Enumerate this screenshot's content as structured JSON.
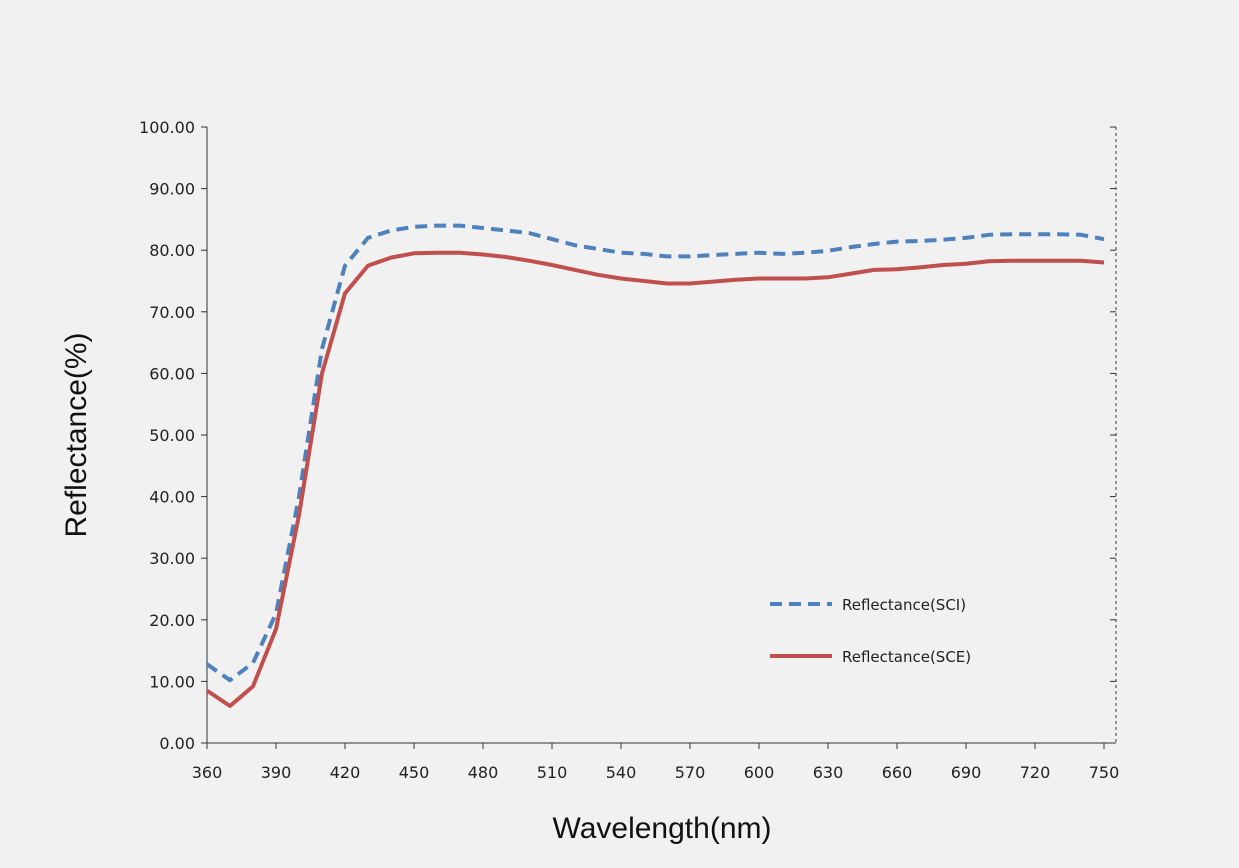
{
  "chart_data": {
    "type": "line",
    "xlabel": "Wavelength(nm)",
    "ylabel": "Reflectance(%)",
    "xlim": [
      360,
      750
    ],
    "ylim": [
      0,
      100
    ],
    "x_ticks": [
      "360",
      "390",
      "420",
      "450",
      "480",
      "510",
      "540",
      "570",
      "600",
      "630",
      "660",
      "690",
      "720",
      "750"
    ],
    "y_ticks": [
      "0.00",
      "10.00",
      "20.00",
      "30.00",
      "40.00",
      "50.00",
      "60.00",
      "70.00",
      "80.00",
      "90.00",
      "100.00"
    ],
    "legend_position": "bottom-right",
    "grid": false,
    "x": [
      360,
      370,
      380,
      390,
      400,
      410,
      420,
      430,
      440,
      450,
      460,
      470,
      480,
      490,
      500,
      510,
      520,
      530,
      540,
      550,
      560,
      570,
      580,
      590,
      600,
      610,
      620,
      630,
      640,
      650,
      660,
      670,
      680,
      690,
      700,
      710,
      720,
      730,
      740,
      750
    ],
    "series": [
      {
        "name": "Reflectance(SCI)",
        "color": "#4f81bd",
        "dash": "dashed",
        "values": [
          12.8,
          10.2,
          13.0,
          21.0,
          40.0,
          64.0,
          77.5,
          82.0,
          83.2,
          83.8,
          84.0,
          84.0,
          83.6,
          83.2,
          82.8,
          81.8,
          80.8,
          80.2,
          79.6,
          79.4,
          79.0,
          79.0,
          79.2,
          79.4,
          79.6,
          79.4,
          79.6,
          79.9,
          80.5,
          81.0,
          81.4,
          81.5,
          81.7,
          82.0,
          82.5,
          82.6,
          82.6,
          82.6,
          82.5,
          81.8
        ]
      },
      {
        "name": "Reflectance(SCE)",
        "color": "#c0504d",
        "dash": "solid",
        "values": [
          8.5,
          6.0,
          9.2,
          18.5,
          37.0,
          60.0,
          73.0,
          77.5,
          78.8,
          79.5,
          79.6,
          79.6,
          79.3,
          78.9,
          78.3,
          77.6,
          76.8,
          76.0,
          75.4,
          75.0,
          74.6,
          74.6,
          74.9,
          75.2,
          75.4,
          75.4,
          75.4,
          75.6,
          76.2,
          76.8,
          76.9,
          77.2,
          77.6,
          77.8,
          78.2,
          78.3,
          78.3,
          78.3,
          78.3,
          78.0
        ]
      }
    ]
  }
}
